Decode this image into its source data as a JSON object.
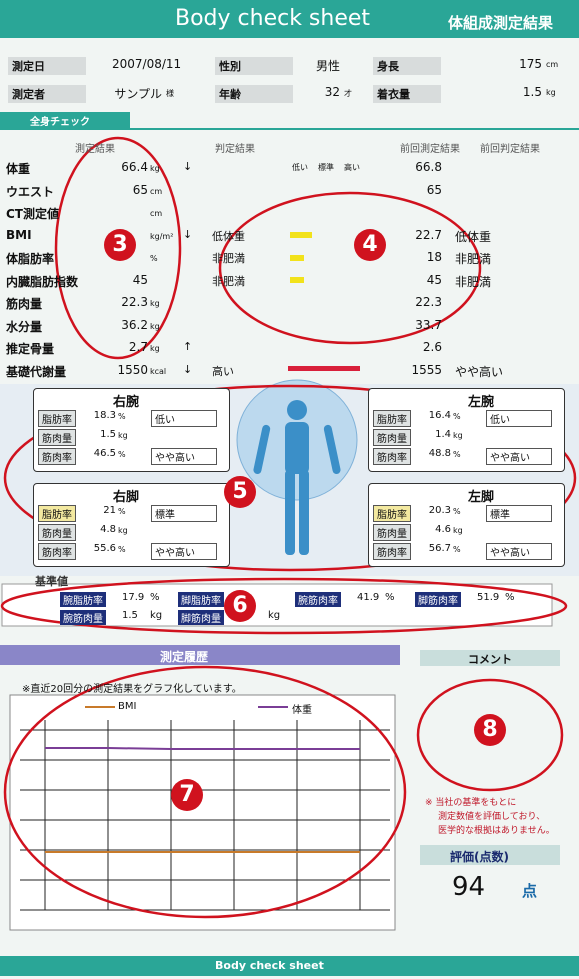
{
  "header": {
    "title": "Body check sheet",
    "subtitle": "体組成測定結果"
  },
  "info": [
    [
      {
        "label": "測定日",
        "value": "2007/08/11"
      },
      {
        "label": "性別",
        "value": "男性"
      },
      {
        "label": "身長",
        "value": 175,
        "unit": "cm"
      }
    ],
    [
      {
        "label": "測定者",
        "value": "サンプル",
        "unit": "様"
      },
      {
        "label": "年齢",
        "value": 32,
        "unit": "才"
      },
      {
        "label": "着衣量",
        "value": 1.5,
        "unit": "kg"
      }
    ]
  ],
  "whole_body": {
    "tab": "全身チェック",
    "columns": [
      "測定結果",
      "判定結果",
      "前回測定結果",
      "前回判定結果"
    ],
    "scale": [
      "低い",
      "標準",
      "高い"
    ],
    "rows": [
      {
        "label": "体重",
        "value": 66.4,
        "unit": "kg",
        "arrow": "↓",
        "prev": 66.8
      },
      {
        "label": "ウエスト",
        "value": 65,
        "unit": "cm",
        "prev": 65
      },
      {
        "label": "CT測定値",
        "unit": "cm"
      },
      {
        "label": "BMI",
        "unit": "kg/m²",
        "arrow": "↓",
        "judge": "低体重",
        "prev": 22.7,
        "prev_judge": "低体重"
      },
      {
        "label": "体脂肪率",
        "unit": "%",
        "judge": "非肥満",
        "prev": 18,
        "prev_judge": "非肥満"
      },
      {
        "label": "内臓脂肪指数",
        "value": 45,
        "judge": "非肥満",
        "prev": 45,
        "prev_judge": "非肥満"
      },
      {
        "label": "筋肉量",
        "value": 22.3,
        "unit": "kg",
        "prev": 22.3
      },
      {
        "label": "水分量",
        "value": 36.2,
        "unit": "kg",
        "prev": 33.7
      },
      {
        "label": "推定骨量",
        "value": 2.7,
        "unit": "kg",
        "arrow": "↑",
        "prev": 2.6
      },
      {
        "label": "基礎代謝量",
        "value": 1550,
        "unit": "kcal",
        "arrow": "↓",
        "judge": "高い",
        "prev": 1555,
        "prev_judge": "やや高い"
      }
    ]
  },
  "parts": [
    {
      "name": "右腕",
      "items": [
        {
          "label": "脂肪率",
          "value": 18.3,
          "unit": "%",
          "judge": "低い"
        },
        {
          "label": "筋肉量",
          "value": 1.5,
          "unit": "kg"
        },
        {
          "label": "筋肉率",
          "value": 46.5,
          "unit": "%",
          "judge": "やや高い"
        }
      ]
    },
    {
      "name": "左腕",
      "items": [
        {
          "label": "脂肪率",
          "value": 16.4,
          "unit": "%",
          "judge": "低い"
        },
        {
          "label": "筋肉量",
          "value": 1.4,
          "unit": "kg"
        },
        {
          "label": "筋肉率",
          "value": 48.8,
          "unit": "%",
          "judge": "やや高い"
        }
      ]
    },
    {
      "name": "右脚",
      "items": [
        {
          "label": "脂肪率",
          "value": 21,
          "unit": "%",
          "judge": "標準"
        },
        {
          "label": "筋肉量",
          "value": 4.8,
          "unit": "kg"
        },
        {
          "label": "筋肉率",
          "value": 55.6,
          "unit": "%",
          "judge": "やや高い"
        }
      ]
    },
    {
      "name": "左脚",
      "items": [
        {
          "label": "脂肪率",
          "value": 20.3,
          "unit": "%",
          "judge": "標準"
        },
        {
          "label": "筋肉量",
          "value": 4.6,
          "unit": "kg"
        },
        {
          "label": "筋肉率",
          "value": 56.7,
          "unit": "%",
          "judge": "やや高い"
        }
      ]
    }
  ],
  "reference": {
    "title": "基準値",
    "items": [
      {
        "label": "腕脂肪率",
        "value": 17.9,
        "unit": "%"
      },
      {
        "label": "脚脂肪率"
      },
      {
        "label": "腕筋肉率",
        "value": 41.9,
        "unit": "%"
      },
      {
        "label": "脚筋肉率",
        "value": 51.9,
        "unit": "%"
      },
      {
        "label": "腕筋肉量",
        "value": 1.5,
        "unit": "kg"
      },
      {
        "label": "脚筋肉量",
        "unit": "kg"
      }
    ]
  },
  "history": {
    "title": "測定履歴",
    "note": "※直近20回分の測定結果をグラフ化しています。",
    "legend": [
      "BMI",
      "体重"
    ]
  },
  "comment": {
    "title": "コメント",
    "note": [
      "※ 当社の基準をもとに",
      "測定数値を評価しており、",
      "医学的な根拠はありません。"
    ]
  },
  "score": {
    "title": "評価(点数)",
    "value": 94,
    "unit": "点"
  },
  "annotations": [
    3,
    4,
    5,
    6,
    7,
    8
  ],
  "footer": "Body check sheet"
}
